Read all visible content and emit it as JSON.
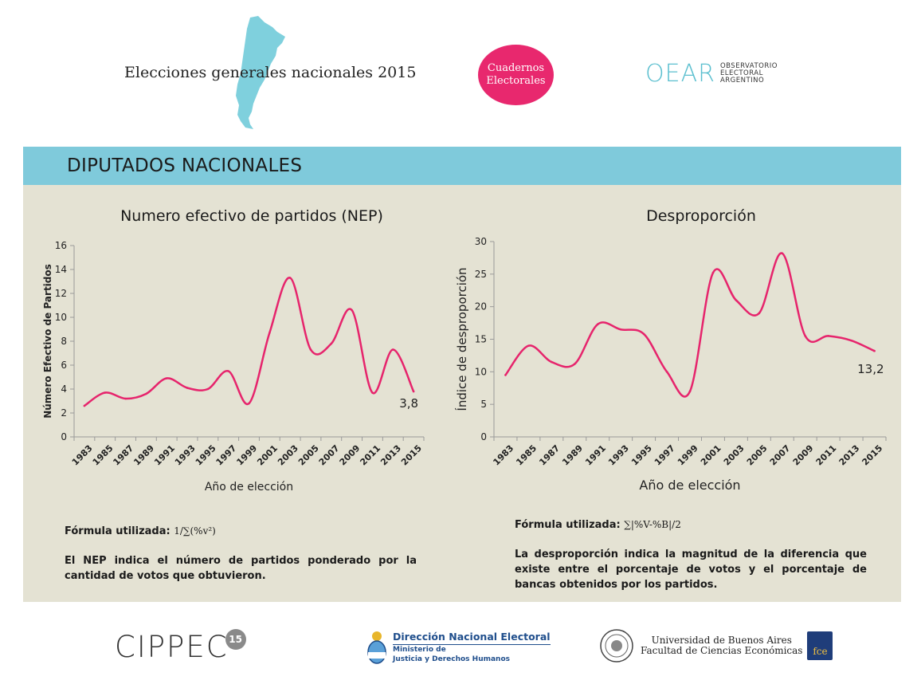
{
  "header": {
    "title": "Elecciones generales nacionales 2015",
    "cuadernos_line1": "Cuadernos",
    "cuadernos_line2": "Electorales",
    "oear_mark": "OEAR",
    "oear_line1": "OBSERVATORIO",
    "oear_line2": "ELECTORAL",
    "oear_line3": "ARGENTINO"
  },
  "banner": {
    "title": "DIPUTADOS NACIONALES"
  },
  "colors": {
    "accent_pink": "#e8286e",
    "banner_blue": "#7fcadb",
    "panel_bg": "#e4e2d3",
    "line": "#e6246c",
    "map_blue": "#7fd0dd"
  },
  "left_text": {
    "formula_label": "Fórmula utilizada:",
    "formula": "1/∑(%v²)",
    "description": "El NEP indica el número de partidos ponderado por la cantidad de votos que obtuvieron."
  },
  "right_text": {
    "formula_label": "Fórmula utilizada:",
    "formula": "∑|%V-%B|/2",
    "description": "La desproporción indica la magnitud de la diferencia que existe entre el porcentaje de votos y el porcentaje de bancas obtenidos por los partidos."
  },
  "footer": {
    "cippec": "CIPPEC",
    "cippec_badge": "15",
    "dne_title": "Dirección Nacional Electoral",
    "dne_sub1": "Ministerio de",
    "dne_sub2": "Justicia y Derechos Humanos",
    "uba_line1": "Universidad de Buenos Aires",
    "uba_line2": "Facultad de Ciencias Económicas",
    "fce": "fce"
  },
  "chart_data": [
    {
      "type": "line",
      "title": "Numero efectivo de partidos (NEP)",
      "xlabel": "Año de elección",
      "ylabel": "Número Efectivo de Partidos",
      "ylim": [
        0,
        16
      ],
      "yticks": [
        0,
        2,
        4,
        6,
        8,
        10,
        12,
        14,
        16
      ],
      "categories": [
        "1983",
        "1985",
        "1987",
        "1989",
        "1991",
        "1993",
        "1995",
        "1997",
        "1999",
        "2001",
        "2003",
        "2005",
        "2007",
        "2009",
        "2011",
        "2013",
        "2015"
      ],
      "series": [
        {
          "name": "NEP",
          "values": [
            2.6,
            3.7,
            3.2,
            3.6,
            4.9,
            4.1,
            4.0,
            5.5,
            2.8,
            8.7,
            13.3,
            7.3,
            7.8,
            10.6,
            3.7,
            7.3,
            3.8
          ]
        }
      ],
      "end_label": "3,8",
      "grid": false
    },
    {
      "type": "line",
      "title": "Desproporción",
      "xlabel": "Año de elección",
      "ylabel": "Índice de desproporción",
      "ylim": [
        0,
        30
      ],
      "yticks": [
        0,
        5,
        10,
        15,
        20,
        25,
        30
      ],
      "categories": [
        "1983",
        "1985",
        "1987",
        "1989",
        "1991",
        "1993",
        "1995",
        "1997",
        "1999",
        "2001",
        "2003",
        "2005",
        "2007",
        "2009",
        "2011",
        "2013",
        "2015"
      ],
      "series": [
        {
          "name": "Desproporción",
          "values": [
            9.5,
            14.0,
            11.5,
            11.2,
            17.3,
            16.5,
            15.8,
            10.0,
            7.0,
            25.2,
            21.0,
            19.0,
            28.2,
            15.5,
            15.5,
            14.8,
            13.2
          ]
        }
      ],
      "end_label": "13,2",
      "grid": false
    }
  ]
}
